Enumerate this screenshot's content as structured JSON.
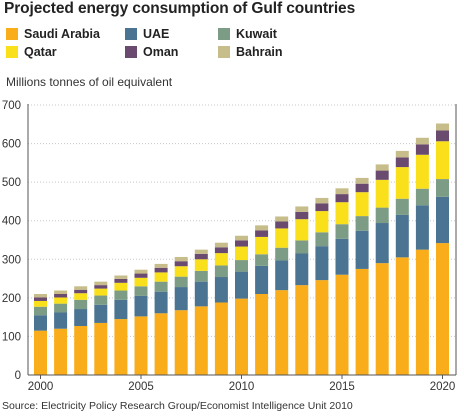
{
  "chart_data": {
    "type": "bar",
    "stacked": true,
    "title": "Projected energy consumption of Gulf countries",
    "ylabel": "Millions tonnes of oil equivalent",
    "xlabel": "",
    "source": "Source: Electricity Policy Research Group/Economist Intelligence Unit 2010",
    "ylim": [
      0,
      700
    ],
    "yticks": [
      "0",
      "100",
      "200",
      "300",
      "400",
      "500",
      "600",
      "700"
    ],
    "xticks": [
      "2000",
      "2005",
      "2010",
      "2015",
      "2020"
    ],
    "grid": true,
    "legend_position": "top-left",
    "categories": [
      2000,
      2001,
      2002,
      2003,
      2004,
      2005,
      2006,
      2007,
      2008,
      2009,
      2010,
      2011,
      2012,
      2013,
      2014,
      2015,
      2016,
      2017,
      2018,
      2019,
      2020
    ],
    "series": [
      {
        "name": "Saudi Arabia",
        "color": "#f9ad1b",
        "values": [
          115,
          120,
          127,
          135,
          145,
          152,
          160,
          168,
          178,
          188,
          198,
          210,
          220,
          233,
          246,
          260,
          275,
          290,
          305,
          325,
          342
        ]
      },
      {
        "name": "UAE",
        "color": "#4a7491",
        "values": [
          40,
          42,
          44,
          47,
          50,
          53,
          56,
          60,
          64,
          66,
          70,
          73,
          77,
          82,
          88,
          93,
          99,
          104,
          110,
          115,
          120
        ]
      },
      {
        "name": "Kuwait",
        "color": "#7d9c86",
        "values": [
          22,
          23,
          24,
          24,
          24,
          25,
          26,
          27,
          28,
          30,
          30,
          30,
          33,
          34,
          36,
          38,
          38,
          40,
          42,
          43,
          46
        ]
      },
      {
        "name": "Qatar",
        "color": "#f9e01b",
        "values": [
          15,
          16,
          17,
          18,
          20,
          22,
          24,
          27,
          30,
          32,
          35,
          45,
          50,
          55,
          55,
          57,
          62,
          72,
          82,
          88,
          98
        ]
      },
      {
        "name": "Oman",
        "color": "#6a4a6e",
        "values": [
          9,
          9,
          9,
          9,
          10,
          11,
          12,
          13,
          14,
          15,
          16,
          17,
          18,
          19,
          20,
          21,
          22,
          24,
          25,
          27,
          28
        ]
      },
      {
        "name": "Bahrain",
        "color": "#c6bd8b",
        "values": [
          9,
          9,
          9,
          9,
          9,
          10,
          10,
          11,
          11,
          12,
          12,
          13,
          13,
          14,
          14,
          15,
          15,
          16,
          17,
          17,
          18
        ]
      }
    ]
  }
}
